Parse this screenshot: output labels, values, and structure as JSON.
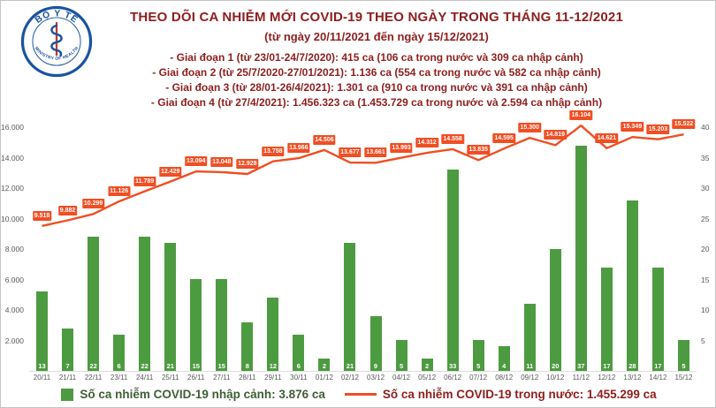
{
  "logo": {
    "top_text": "BỘ Y TẾ",
    "bottom_text": "MINISTRY OF HEALTH"
  },
  "header": {
    "title": "THEO DÕI CA NHIỄM MỚI COVID-19 THEO NGÀY TRONG THÁNG 11-12/2021",
    "subtitle": "(từ ngày 20/11/2021 đến ngày 15/12/2021)",
    "periods": [
      "- Giai đoạn 1 (từ 23/01-24/7/2020): 415 ca (106 ca trong nước và 309 ca nhập cảnh)",
      "- Giai đoạn 2 (từ 25/7/2020-27/01/2021): 1.136 ca (554 ca trong nước và 582 ca nhập cảnh)",
      "- Giai đoạn 3 (từ 28/01-26/4/2021): 1.301 ca (910 ca trong nước và 391 ca nhập cảnh)",
      "- Giai đoạn 4 (từ 27/4/2021): 1.456.323 ca (1.453.729 ca trong nước và 2.594 ca nhập cảnh)"
    ]
  },
  "chart_data": {
    "type": "bar",
    "combo": "bar+line",
    "categories": [
      "20/11",
      "21/11",
      "22/11",
      "23/11",
      "24/11",
      "25/11",
      "26/11",
      "27/11",
      "28/11",
      "29/11",
      "30/11",
      "01/12",
      "02/12",
      "03/12",
      "04/12",
      "05/12",
      "06/12",
      "07/12",
      "08/12",
      "09/12",
      "10/12",
      "11/12",
      "12/12",
      "13/12",
      "14/12",
      "15/12"
    ],
    "series": [
      {
        "name": "Số ca nhiễm COVID-19 nhập cảnh",
        "chart_type": "bar",
        "axis": "right",
        "color": "#4d9b40",
        "values": [
          13,
          7,
          22,
          6,
          22,
          21,
          15,
          15,
          8,
          12,
          6,
          2,
          21,
          9,
          5,
          2,
          33,
          5,
          4,
          11,
          20,
          37,
          17,
          28,
          17,
          5
        ]
      },
      {
        "name": "Số ca nhiễm COVID-19 trong nước",
        "chart_type": "line",
        "axis": "left",
        "color": "#f04e23",
        "values": [
          9518,
          9882,
          10299,
          11126,
          11789,
          12429,
          13094,
          13048,
          12928,
          13758,
          13966,
          14506,
          13677,
          13661,
          13993,
          14312,
          14558,
          13835,
          14595,
          15300,
          14819,
          16104,
          14621,
          15349,
          15203,
          15522
        ],
        "labels": [
          "9.518",
          "9.882",
          "10.299",
          "11.126",
          "11.789",
          "12.429",
          "13.094",
          "13.048",
          "12.928",
          "13.758",
          "13.966",
          "14.506",
          "13.677",
          "13.661",
          "13.993",
          "14.312",
          "14.558",
          "13.835",
          "14.595",
          "15.300",
          "14.819",
          "16.104",
          "14.621",
          "15.349",
          "15.203",
          "15.522"
        ]
      }
    ],
    "left_axis": {
      "min": 0,
      "max": 16000,
      "ticks": [
        "16.000",
        "14.000",
        "12.000",
        "10.000",
        "8.000",
        "6.000",
        "4.000",
        "2.000"
      ],
      "tick_values": [
        16000,
        14000,
        12000,
        10000,
        8000,
        6000,
        4000,
        2000
      ]
    },
    "right_axis": {
      "min": 0,
      "max": 40,
      "ticks": [
        "40",
        "35",
        "30",
        "25",
        "20",
        "15",
        "10",
        "5"
      ],
      "tick_values": [
        40,
        35,
        30,
        25,
        20,
        15,
        10,
        5
      ]
    },
    "grid": false,
    "legend_position": "bottom",
    "legend": [
      {
        "label": "Số ca nhiễm COVID-19 nhập cảnh: 3.876 ca",
        "color": "#4d9b40",
        "text_color": "#3f5e36",
        "swatch": "square"
      },
      {
        "label": "Số ca nhiễm COVID-19 trong nước: 1.455.299 ca",
        "color": "#f04e23",
        "text_color": "#8f1d1d",
        "swatch": "line"
      }
    ]
  }
}
